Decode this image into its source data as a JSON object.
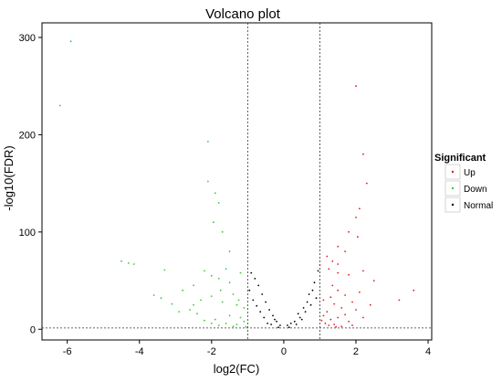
{
  "chart_data": {
    "type": "scatter",
    "title": "Volcano plot",
    "xlabel": "log2(FC)",
    "ylabel": "-log10(FDR)",
    "xlim": [
      -6.7,
      4.1
    ],
    "ylim": [
      -11,
      315
    ],
    "x_ticks": [
      -6,
      -4,
      -2,
      0,
      2,
      4
    ],
    "y_ticks": [
      0,
      100,
      200,
      300
    ],
    "thresholds": {
      "x": [
        -1,
        1
      ],
      "y": 1.3
    },
    "grid": false,
    "legend": {
      "title": "Significant",
      "position": "right",
      "entries": [
        {
          "label": "Up",
          "color": "#e41a1c"
        },
        {
          "label": "Down",
          "color": "#33cc33"
        },
        {
          "label": "Normal",
          "color": "#000000"
        }
      ]
    },
    "series": [
      {
        "name": "Up",
        "color": "#e41a1c",
        "points": [
          [
            2.0,
            250
          ],
          [
            2.2,
            180
          ],
          [
            2.3,
            150
          ],
          [
            2.1,
            124
          ],
          [
            2.0,
            115
          ],
          [
            1.8,
            100
          ],
          [
            2.05,
            95
          ],
          [
            1.5,
            85
          ],
          [
            1.7,
            80
          ],
          [
            1.2,
            75
          ],
          [
            1.35,
            70
          ],
          [
            1.5,
            67
          ],
          [
            1.0,
            66
          ],
          [
            1.25,
            62
          ],
          [
            1.5,
            58
          ],
          [
            1.8,
            56
          ],
          [
            2.2,
            60
          ],
          [
            2.5,
            50
          ],
          [
            3.6,
            40
          ],
          [
            3.2,
            30
          ],
          [
            2.4,
            25
          ],
          [
            1.1,
            30
          ],
          [
            1.3,
            33
          ],
          [
            1.5,
            40
          ],
          [
            1.7,
            35
          ],
          [
            1.9,
            28
          ],
          [
            2.0,
            20
          ],
          [
            1.6,
            22
          ],
          [
            1.4,
            26
          ],
          [
            1.2,
            18
          ],
          [
            1.1,
            14
          ],
          [
            1.3,
            10
          ],
          [
            1.5,
            12
          ],
          [
            1.8,
            8
          ],
          [
            2.2,
            12
          ],
          [
            1.15,
            6
          ],
          [
            1.25,
            4
          ],
          [
            1.4,
            5
          ],
          [
            1.05,
            9
          ],
          [
            1.6,
            3
          ],
          [
            1.9,
            4
          ],
          [
            1.45,
            2.5
          ],
          [
            1.7,
            15
          ],
          [
            2.1,
            38
          ],
          [
            1.35,
            45
          ]
        ]
      },
      {
        "name": "Down",
        "color": "#33cc33",
        "points": [
          [
            -5.9,
            296
          ],
          [
            -6.2,
            230
          ],
          [
            -2.1,
            193
          ],
          [
            -2.1,
            152
          ],
          [
            -1.9,
            140
          ],
          [
            -1.8,
            130
          ],
          [
            -1.95,
            110
          ],
          [
            -1.7,
            100
          ],
          [
            -1.5,
            80
          ],
          [
            -4.5,
            70
          ],
          [
            -4.3,
            68
          ],
          [
            -4.15,
            67
          ],
          [
            -3.3,
            61
          ],
          [
            -2.2,
            60
          ],
          [
            -2.0,
            55
          ],
          [
            -1.8,
            52
          ],
          [
            -1.5,
            48
          ],
          [
            -1.2,
            58
          ],
          [
            -1.6,
            62
          ],
          [
            -2.5,
            45
          ],
          [
            -2.8,
            40
          ],
          [
            -3.6,
            35
          ],
          [
            -3.4,
            32
          ],
          [
            -2.3,
            30
          ],
          [
            -2.0,
            34
          ],
          [
            -1.4,
            36
          ],
          [
            -1.7,
            28
          ],
          [
            -1.3,
            25
          ],
          [
            -1.1,
            22
          ],
          [
            -2.6,
            20
          ],
          [
            -2.9,
            18
          ],
          [
            -2.4,
            16
          ],
          [
            -1.5,
            14
          ],
          [
            -1.2,
            12
          ],
          [
            -1.9,
            10
          ],
          [
            -2.2,
            9
          ],
          [
            -1.1,
            8
          ],
          [
            -1.6,
            6
          ],
          [
            -1.3,
            5
          ],
          [
            -1.8,
            4
          ],
          [
            -2.0,
            6
          ],
          [
            -1.4,
            3
          ],
          [
            -1.05,
            2.5
          ],
          [
            -2.5,
            25
          ],
          [
            -1.75,
            40
          ],
          [
            -1.25,
            30
          ],
          [
            -3.1,
            26
          ]
        ]
      },
      {
        "name": "Normal",
        "color": "#000000",
        "points": [
          [
            -0.9,
            58
          ],
          [
            -0.8,
            52
          ],
          [
            -0.7,
            45
          ],
          [
            -0.95,
            40
          ],
          [
            -0.6,
            36
          ],
          [
            -0.85,
            30
          ],
          [
            -0.5,
            28
          ],
          [
            -0.75,
            24
          ],
          [
            -0.4,
            20
          ],
          [
            -0.65,
            18
          ],
          [
            -0.3,
            14
          ],
          [
            -0.55,
            12
          ],
          [
            -0.2,
            8
          ],
          [
            -0.45,
            6
          ],
          [
            -0.1,
            4
          ],
          [
            0.1,
            4
          ],
          [
            0.3,
            8
          ],
          [
            0.2,
            6
          ],
          [
            0.45,
            12
          ],
          [
            0.6,
            18
          ],
          [
            0.75,
            25
          ],
          [
            0.9,
            32
          ],
          [
            0.8,
            40
          ],
          [
            0.95,
            60
          ],
          [
            0.85,
            48
          ],
          [
            0.7,
            36
          ],
          [
            0.55,
            22
          ],
          [
            0.4,
            16
          ],
          [
            0.65,
            28
          ],
          [
            0.5,
            10
          ],
          [
            0.35,
            5
          ],
          [
            -0.35,
            5
          ],
          [
            -0.25,
            10
          ],
          [
            0.15,
            2
          ],
          [
            -0.15,
            2
          ]
        ]
      }
    ]
  }
}
